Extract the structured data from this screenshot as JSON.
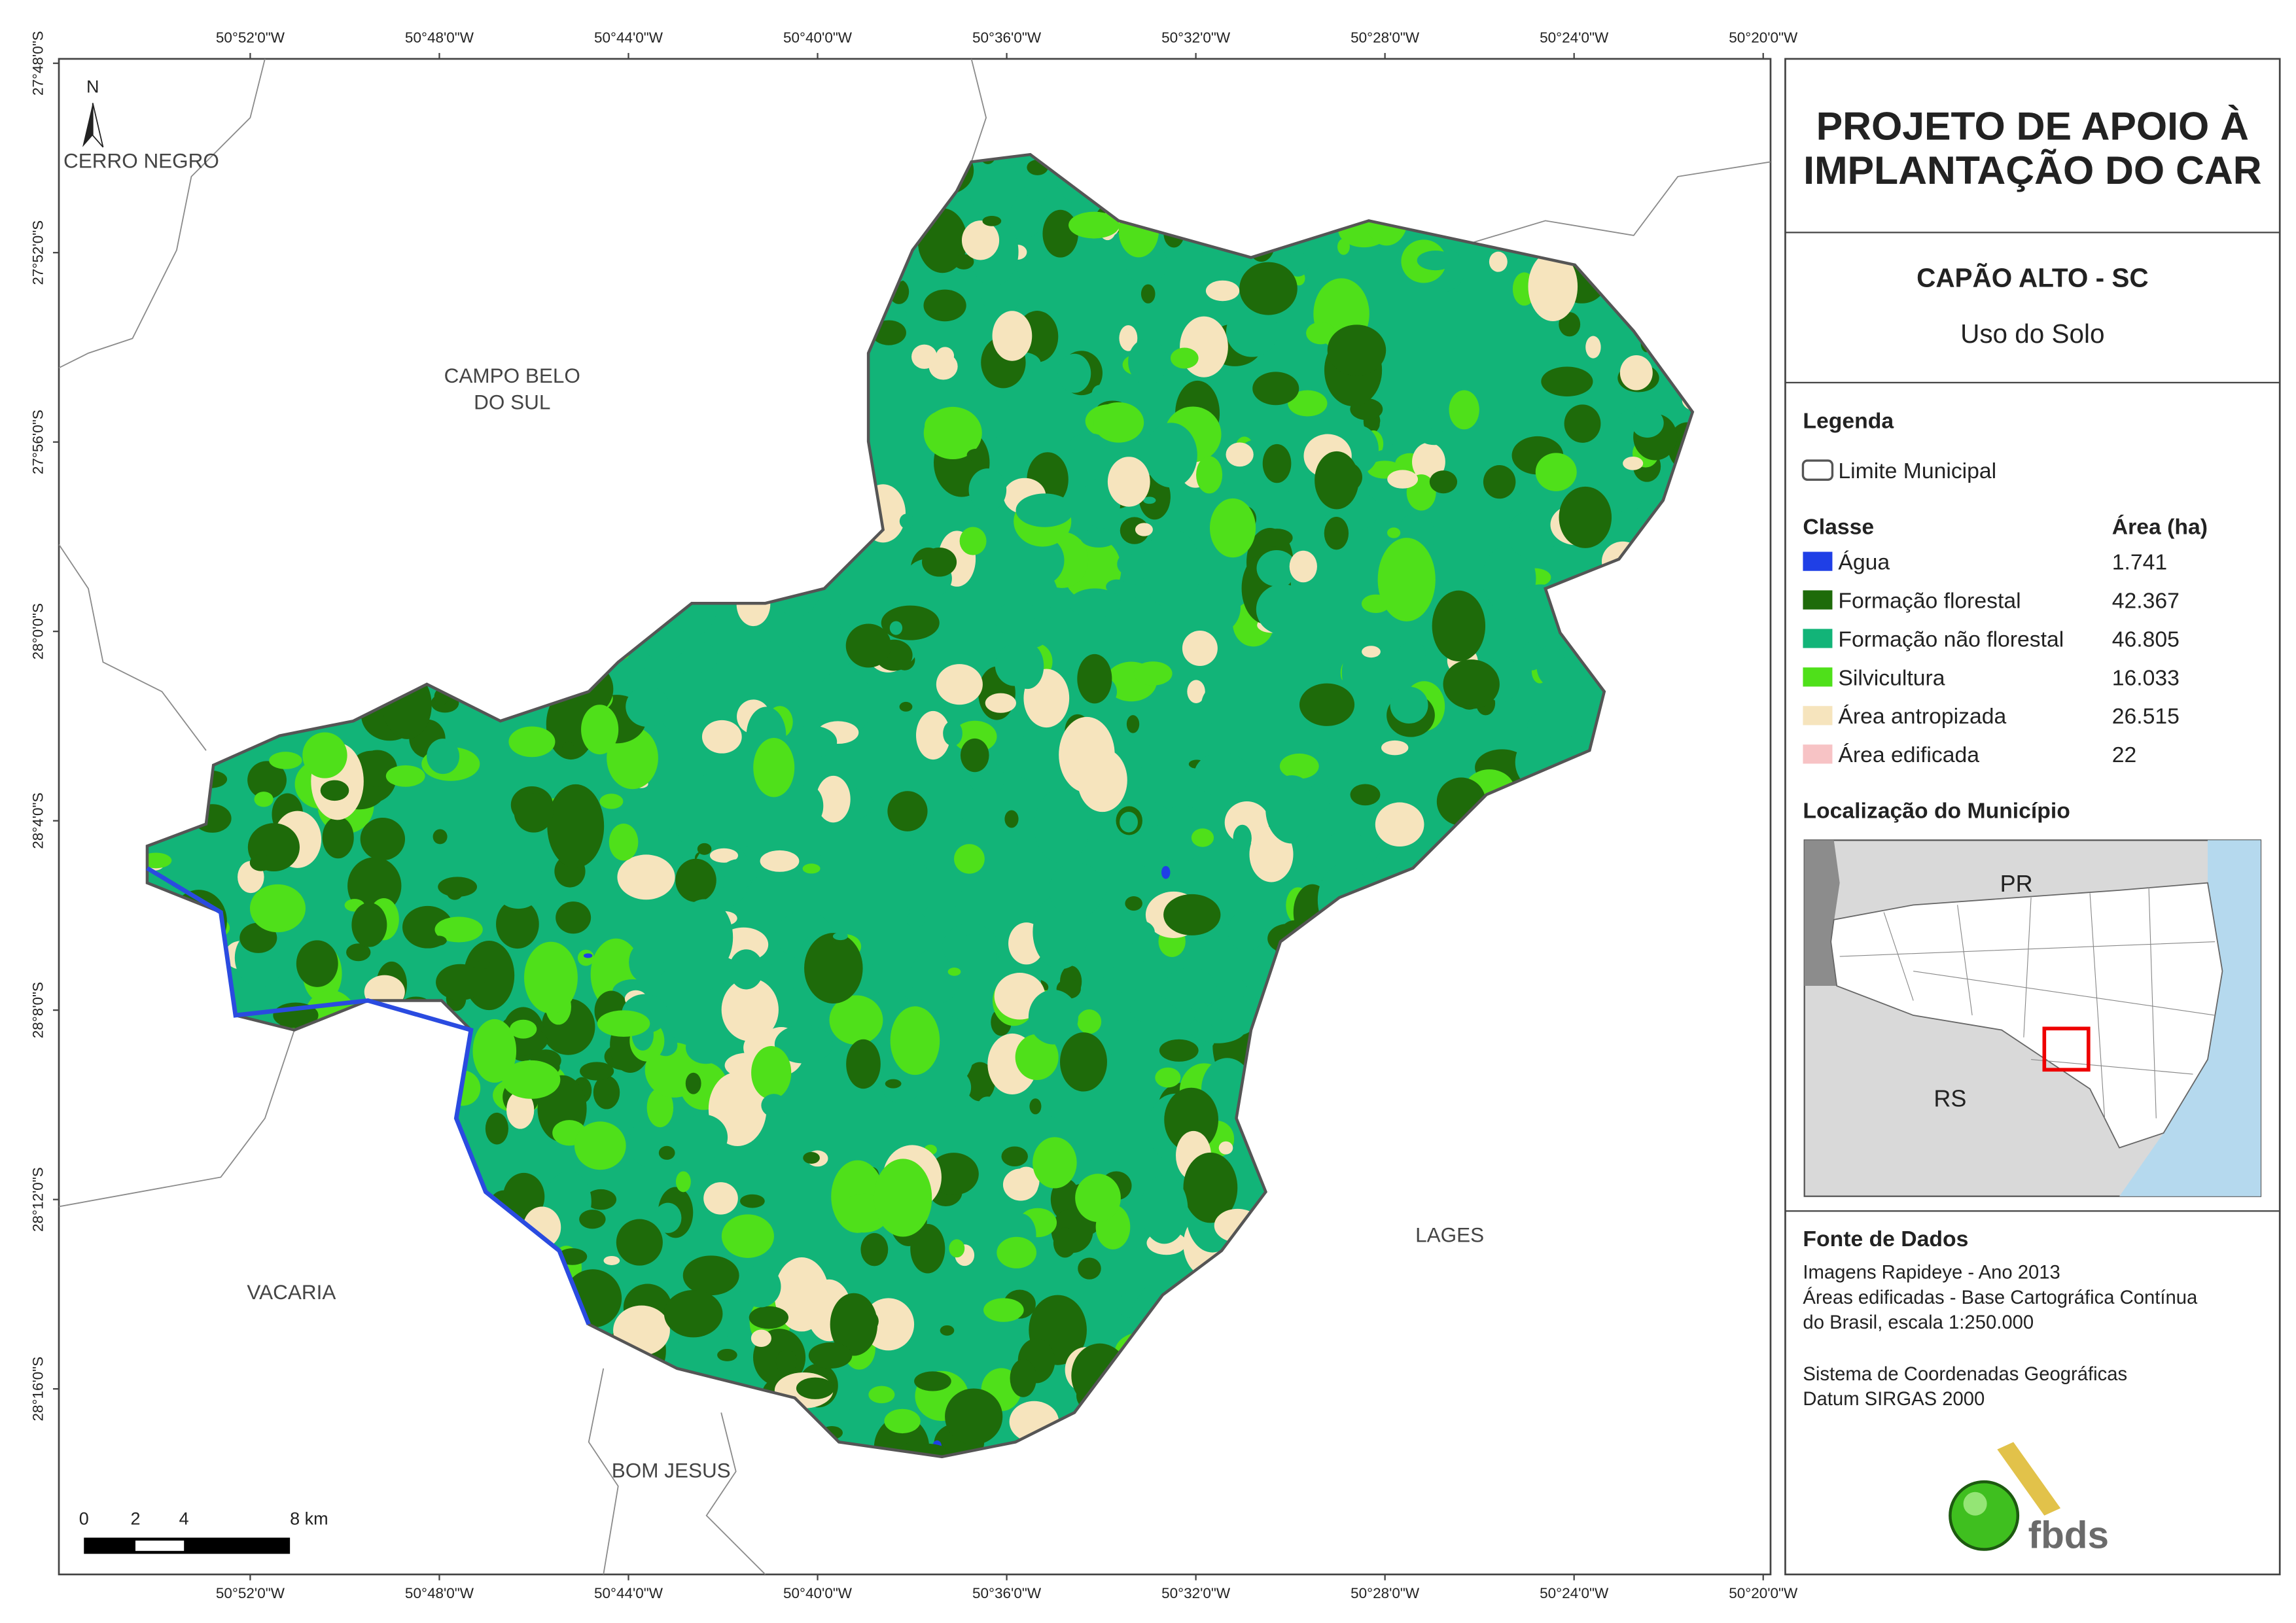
{
  "header": {
    "title_lines": [
      "PROJETO DE APOIO À",
      "IMPLANTAÇÃO DO CAR"
    ],
    "municipality": "CAPÃO ALTO - SC",
    "subtitle": "Uso do Solo"
  },
  "legend": {
    "title": "Legenda",
    "boundary": "Limite Municipal",
    "class_header": "Classe",
    "area_header": "Área (ha)",
    "classes": [
      {
        "name": "Água",
        "area": "1.741",
        "color": "#1f3fe6"
      },
      {
        "name": "Formação florestal",
        "area": "42.367",
        "color": "#1e6b0a"
      },
      {
        "name": "Formação não florestal",
        "area": "46.805",
        "color": "#12b478"
      },
      {
        "name": "Silvicultura",
        "area": "16.033",
        "color": "#4fe01a"
      },
      {
        "name": "Área antropizada",
        "area": "26.515",
        "color": "#f6e4bd"
      },
      {
        "name": "Área edificada",
        "area": "22",
        "color": "#f7c3c5"
      }
    ]
  },
  "location": {
    "title": "Localização do Município",
    "labels": [
      "PR",
      "RS"
    ]
  },
  "sources": {
    "title": "Fonte de Dados",
    "lines": [
      "Imagens Rapideye - Ano 2013",
      "Áreas edificadas - Base Cartográfica Contínua",
      "do Brasil, escala 1:250.000",
      "Sistema de Coordenadas Geográficas",
      "Datum SIRGAS 2000"
    ]
  },
  "places": [
    {
      "lines": [
        "CERRO NEGRO"
      ]
    },
    {
      "lines": [
        "CAMPO BELO",
        "DO SUL"
      ]
    },
    {
      "lines": [
        "LAGES"
      ]
    },
    {
      "lines": [
        "VACARIA"
      ]
    },
    {
      "lines": [
        "BOM JESUS"
      ]
    }
  ],
  "longitude_ticks": [
    "50°52'0\"W",
    "50°48'0\"W",
    "50°44'0\"W",
    "50°40'0\"W",
    "50°36'0\"W",
    "50°32'0\"W",
    "50°28'0\"W",
    "50°24'0\"W",
    "50°20'0\"W"
  ],
  "latitude_ticks": [
    "27°48'0\"S",
    "27°52'0\"S",
    "27°56'0\"S",
    "28°0'0\"S",
    "28°4'0\"S",
    "28°8'0\"S",
    "28°12'0\"S",
    "28°16'0\"S"
  ],
  "north": "N",
  "scale_bar": [
    "0",
    "2",
    "4",
    "8 km"
  ],
  "logo": "fbds"
}
